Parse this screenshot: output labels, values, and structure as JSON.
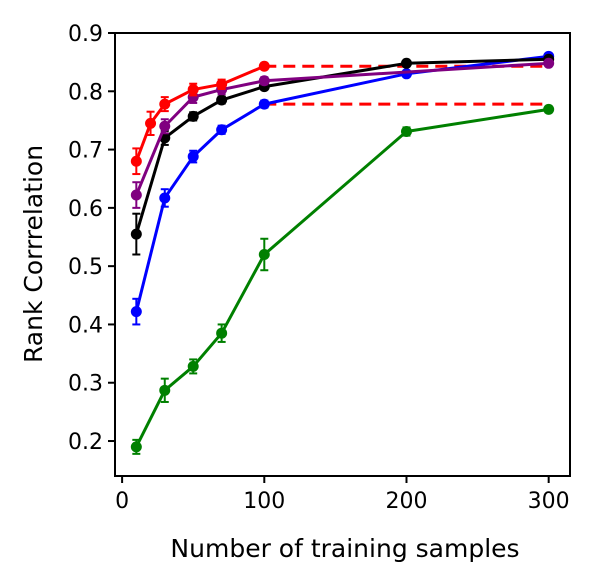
{
  "chart_data": {
    "type": "line",
    "title": "",
    "xlabel": "Number of training samples",
    "ylabel": "Rank Corrrelation",
    "xlim": [
      -5,
      315
    ],
    "ylim": [
      0.14,
      0.9
    ],
    "xticks": [
      0,
      100,
      200,
      300
    ],
    "yticks": [
      0.2,
      0.3,
      0.4,
      0.5,
      0.6,
      0.7,
      0.8,
      0.9
    ],
    "xtick_labels": [
      "0",
      "100",
      "200",
      "300"
    ],
    "ytick_labels": [
      "0.2",
      "0.3",
      "0.4",
      "0.5",
      "0.6",
      "0.7",
      "0.8",
      "0.9"
    ],
    "grid": false,
    "legend": false,
    "series": [
      {
        "color": "#008000",
        "x": [
          10,
          30,
          50,
          70,
          100,
          200,
          300
        ],
        "y": [
          0.19,
          0.287,
          0.328,
          0.385,
          0.52,
          0.731,
          0.769
        ],
        "err": [
          0.012,
          0.02,
          0.012,
          0.015,
          0.027,
          0.007,
          0.005
        ]
      },
      {
        "color": "#0000ff",
        "x": [
          10,
          30,
          50,
          70,
          100,
          200,
          300
        ],
        "y": [
          0.422,
          0.617,
          0.688,
          0.734,
          0.778,
          0.83,
          0.86
        ],
        "err": [
          0.022,
          0.015,
          0.01,
          0.007,
          0.006,
          0.005,
          0.004
        ]
      },
      {
        "color": "#000000",
        "x": [
          10,
          30,
          50,
          70,
          100,
          200,
          300
        ],
        "y": [
          0.555,
          0.72,
          0.757,
          0.785,
          0.808,
          0.848,
          0.855
        ],
        "err": [
          0.035,
          0.012,
          0.007,
          0.006,
          0.005,
          0.004,
          0.004
        ]
      },
      {
        "color": "#800080",
        "x": [
          10,
          30,
          50,
          70,
          100,
          300
        ],
        "y": [
          0.622,
          0.74,
          0.79,
          0.803,
          0.818,
          0.848
        ],
        "err": [
          0.022,
          0.012,
          0.01,
          0.008,
          0.006,
          0.004
        ]
      },
      {
        "color": "#ff0000",
        "x": [
          10,
          20,
          30,
          50,
          70,
          100
        ],
        "y": [
          0.68,
          0.745,
          0.778,
          0.803,
          0.812,
          0.843
        ],
        "err": [
          0.022,
          0.02,
          0.012,
          0.01,
          0.008,
          0.005
        ]
      }
    ],
    "reference_lines": [
      {
        "color": "#ff0000",
        "style": "dashed",
        "x": [
          100,
          300
        ],
        "y": [
          0.843,
          0.843
        ]
      },
      {
        "color": "#ff0000",
        "style": "dashed",
        "x": [
          100,
          300
        ],
        "y": [
          0.778,
          0.778
        ]
      }
    ]
  }
}
